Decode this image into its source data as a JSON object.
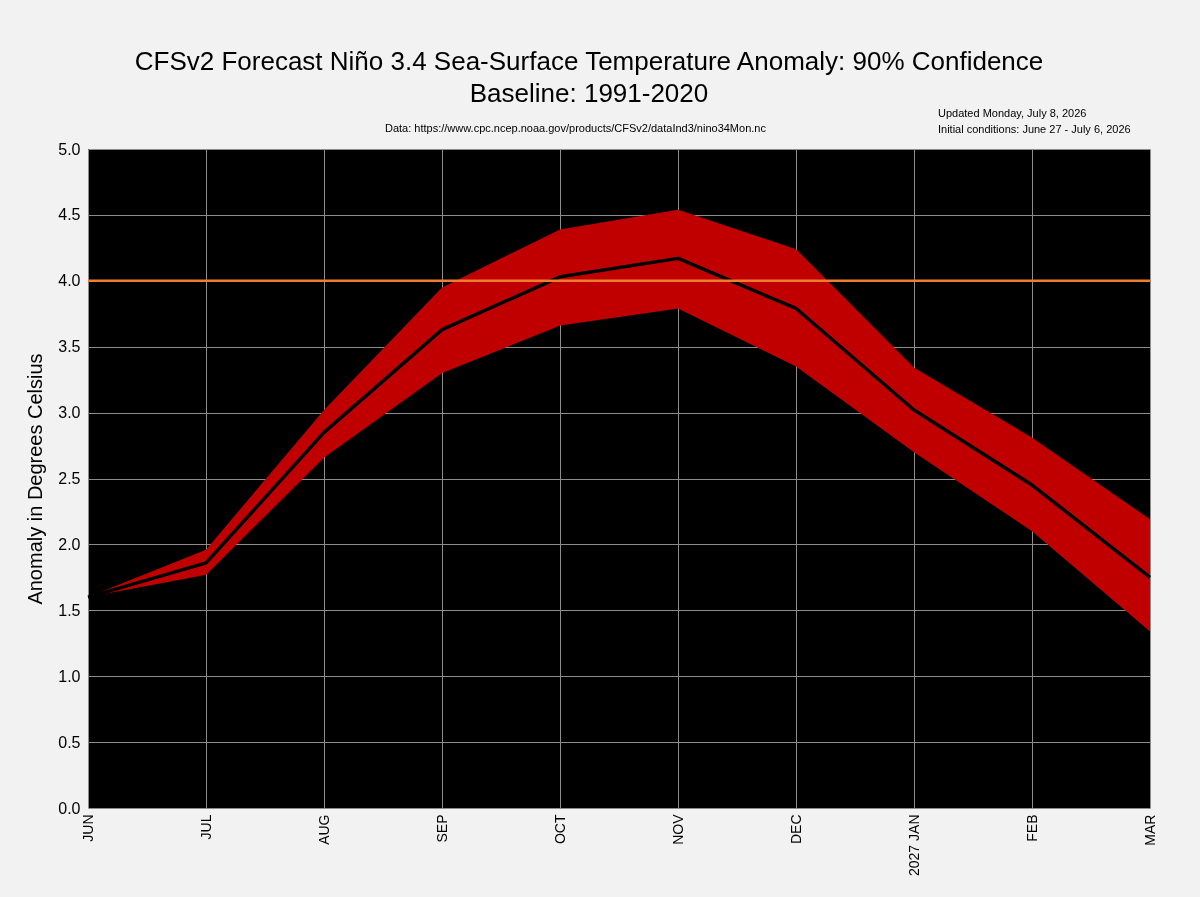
{
  "chart_data": {
    "type": "line",
    "title": "CFSv2 Forecast Niño 3.4 Sea-Surface Temperature Anomaly: 90% Confidence",
    "subtitle": "Baseline: 1991-2020",
    "ylabel": "Anomaly in Degrees Celsius",
    "annotations": [
      "Data: https://www.cpc.ncep.noaa.gov/products/CFSv2/dataInd3/nino34Mon.nc",
      "Updated Monday, July 8, 2026",
      "Initial conditions: June 27 - July 6, 2026"
    ],
    "categories": [
      "JUN",
      "JUL",
      "AUG",
      "SEP",
      "OCT",
      "NOV",
      "DEC",
      "2027 JAN",
      "FEB",
      "MAR"
    ],
    "series": [
      {
        "color": "#000000",
        "values": [
          1.6,
          1.86,
          2.85,
          3.63,
          4.03,
          4.17,
          3.79,
          3.02,
          2.45,
          1.75
        ],
        "lower": [
          1.6,
          1.77,
          2.66,
          3.3,
          3.66,
          3.79,
          3.35,
          2.7,
          2.1,
          1.34
        ],
        "upper": [
          1.6,
          1.96,
          3.02,
          3.95,
          4.39,
          4.54,
          4.24,
          3.34,
          2.81,
          2.19
        ]
      }
    ],
    "ref_lines": [
      {
        "axis": "y",
        "value": 4.0,
        "color": "#ed7d31"
      }
    ],
    "ylim": [
      0,
      5
    ],
    "yticks": [
      {
        "value": 0,
        "label": "0.0"
      },
      {
        "value": 0.5,
        "label": "0.5"
      },
      {
        "value": 1,
        "label": "1.0"
      },
      {
        "value": 1.5,
        "label": "1.5"
      },
      {
        "value": 2,
        "label": "2.0"
      },
      {
        "value": 2.5,
        "label": "2.5"
      },
      {
        "value": 3,
        "label": "3.0"
      },
      {
        "value": 3.5,
        "label": "3.5"
      },
      {
        "value": 4,
        "label": "4.0"
      },
      {
        "value": 4.5,
        "label": "4.5"
      },
      {
        "value": 5,
        "label": "5.0"
      }
    ],
    "grid": true,
    "line_style": "solid",
    "marker": "none"
  }
}
